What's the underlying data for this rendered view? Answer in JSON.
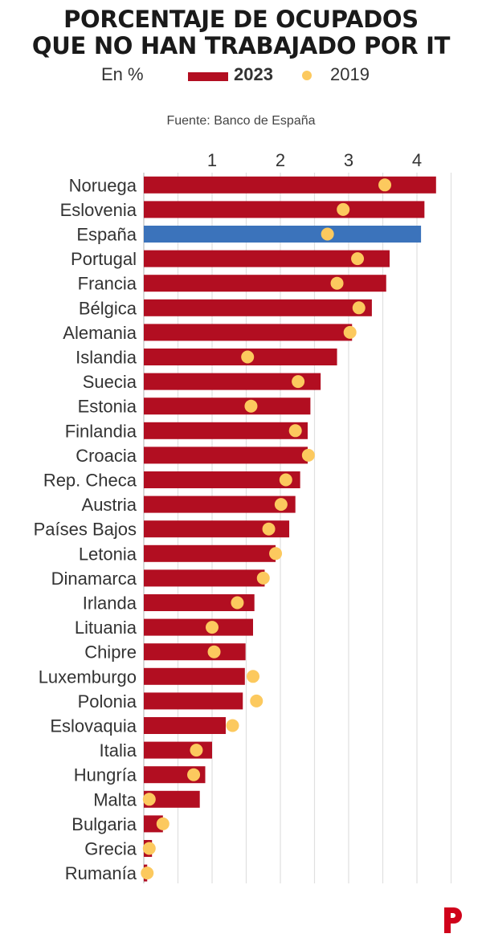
{
  "title_lines": [
    "PORCENTAJE DE OCUPADOS",
    "QUE NO HAN TRABAJADO POR IT"
  ],
  "legend": {
    "unit": "En %",
    "series_2023": "2023",
    "series_2019": "2019"
  },
  "source": "Fuente: Banco de España",
  "colors": {
    "bar_2023": "#b20e21",
    "bar_highlight": "#3b73bb",
    "dot_2019": "#fcc95e",
    "grid": "#e0e0e0",
    "text": "#333333",
    "logo": "#d0021b"
  },
  "logo_icon": "brand-p-icon",
  "chart_data": {
    "type": "bar",
    "orientation": "horizontal",
    "xlim": [
      0,
      4.5
    ],
    "xticks": [
      1,
      2,
      3,
      4
    ],
    "grid": true,
    "highlight": "España",
    "categories": [
      "Noruega",
      "Eslovenia",
      "España",
      "Portugal",
      "Francia",
      "Bélgica",
      "Alemania",
      "Islandia",
      "Suecia",
      "Estonia",
      "Finlandia",
      "Croacia",
      "Rep. Checa",
      "Austria",
      "Países Bajos",
      "Letonia",
      "Dinamarca",
      "Irlanda",
      "Lituania",
      "Chipre",
      "Luxemburgo",
      "Polonia",
      "Eslovaquia",
      "Italia",
      "Hungría",
      "Malta",
      "Bulgaria",
      "Grecia",
      "Rumanía"
    ],
    "series": [
      {
        "name": "2023",
        "values": [
          4.28,
          4.11,
          4.06,
          3.6,
          3.55,
          3.34,
          3.05,
          2.83,
          2.59,
          2.44,
          2.4,
          2.4,
          2.29,
          2.22,
          2.13,
          1.93,
          1.77,
          1.62,
          1.6,
          1.49,
          1.48,
          1.45,
          1.2,
          1.0,
          0.9,
          0.82,
          0.28,
          0.12,
          0.05
        ]
      },
      {
        "name": "2019",
        "values": [
          3.53,
          2.92,
          2.69,
          3.13,
          2.83,
          3.15,
          3.02,
          1.52,
          2.26,
          1.57,
          2.22,
          2.41,
          2.08,
          2.01,
          1.83,
          1.93,
          1.75,
          1.37,
          1.0,
          1.03,
          1.6,
          1.65,
          1.3,
          0.77,
          0.73,
          0.08,
          0.28,
          0.08,
          0.05
        ]
      }
    ]
  }
}
